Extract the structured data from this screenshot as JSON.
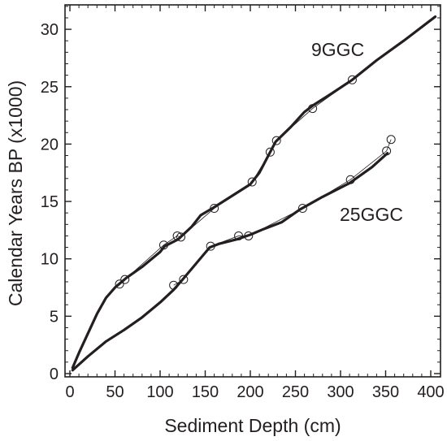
{
  "chart_data": {
    "type": "line",
    "xlabel": "Sediment Depth (cm)",
    "ylabel": "Calendar Years BP (x1000)",
    "xlim": [
      0,
      410
    ],
    "ylim": [
      0,
      32
    ],
    "xticks": [
      "0",
      "50",
      "100",
      "150",
      "200",
      "250",
      "300",
      "350",
      "400"
    ],
    "yticks": [
      "0",
      "5",
      "10",
      "15",
      "20",
      "25",
      "30"
    ],
    "grid": false,
    "colors": {
      "line": "#231f20",
      "axis": "#231f20"
    },
    "series": [
      {
        "name": "9GGC",
        "model": [
          {
            "x": 3,
            "y": 0.5
          },
          {
            "x": 10,
            "y": 1.8
          },
          {
            "x": 20,
            "y": 3.5
          },
          {
            "x": 30,
            "y": 5.2
          },
          {
            "x": 40,
            "y": 6.6
          },
          {
            "x": 50,
            "y": 7.5
          },
          {
            "x": 56,
            "y": 7.9
          },
          {
            "x": 62,
            "y": 8.3
          },
          {
            "x": 80,
            "y": 9.3
          },
          {
            "x": 100,
            "y": 10.6
          },
          {
            "x": 105,
            "y": 11.1
          },
          {
            "x": 120,
            "y": 11.7
          },
          {
            "x": 135,
            "y": 12.8
          },
          {
            "x": 145,
            "y": 13.8
          },
          {
            "x": 160,
            "y": 14.5
          },
          {
            "x": 180,
            "y": 15.5
          },
          {
            "x": 200,
            "y": 16.5
          },
          {
            "x": 210,
            "y": 17.5
          },
          {
            "x": 220,
            "y": 19.0
          },
          {
            "x": 228,
            "y": 20.2
          },
          {
            "x": 245,
            "y": 21.5
          },
          {
            "x": 260,
            "y": 22.8
          },
          {
            "x": 270,
            "y": 23.4
          },
          {
            "x": 290,
            "y": 24.4
          },
          {
            "x": 313,
            "y": 25.6
          },
          {
            "x": 340,
            "y": 27.3
          },
          {
            "x": 370,
            "y": 29.0
          },
          {
            "x": 405,
            "y": 31.1
          }
        ],
        "dates": [
          {
            "x": 55,
            "y": 7.8
          },
          {
            "x": 61,
            "y": 8.2
          },
          {
            "x": 104,
            "y": 11.2
          },
          {
            "x": 119,
            "y": 12.0
          },
          {
            "x": 123,
            "y": 11.9
          },
          {
            "x": 160,
            "y": 14.4
          },
          {
            "x": 202,
            "y": 16.7
          },
          {
            "x": 222,
            "y": 19.3
          },
          {
            "x": 229,
            "y": 20.3
          },
          {
            "x": 269,
            "y": 23.1
          },
          {
            "x": 313,
            "y": 25.6
          }
        ]
      },
      {
        "name": "25GGC",
        "model": [
          {
            "x": 3,
            "y": 0.3
          },
          {
            "x": 20,
            "y": 1.5
          },
          {
            "x": 40,
            "y": 2.8
          },
          {
            "x": 60,
            "y": 3.8
          },
          {
            "x": 80,
            "y": 4.9
          },
          {
            "x": 100,
            "y": 6.2
          },
          {
            "x": 115,
            "y": 7.3
          },
          {
            "x": 125,
            "y": 8.2
          },
          {
            "x": 140,
            "y": 9.6
          },
          {
            "x": 155,
            "y": 11.0
          },
          {
            "x": 165,
            "y": 11.3
          },
          {
            "x": 185,
            "y": 11.7
          },
          {
            "x": 200,
            "y": 12.1
          },
          {
            "x": 215,
            "y": 12.6
          },
          {
            "x": 235,
            "y": 13.2
          },
          {
            "x": 255,
            "y": 14.3
          },
          {
            "x": 280,
            "y": 15.4
          },
          {
            "x": 310,
            "y": 16.6
          },
          {
            "x": 335,
            "y": 18.0
          },
          {
            "x": 352,
            "y": 19.2
          }
        ],
        "dates": [
          {
            "x": 115,
            "y": 7.7
          },
          {
            "x": 126,
            "y": 8.2
          },
          {
            "x": 156,
            "y": 11.1
          },
          {
            "x": 187,
            "y": 12.0
          },
          {
            "x": 198,
            "y": 12.0
          },
          {
            "x": 258,
            "y": 14.4
          },
          {
            "x": 311,
            "y": 16.9
          },
          {
            "x": 351,
            "y": 19.4
          },
          {
            "x": 356,
            "y": 20.4
          }
        ]
      }
    ]
  }
}
